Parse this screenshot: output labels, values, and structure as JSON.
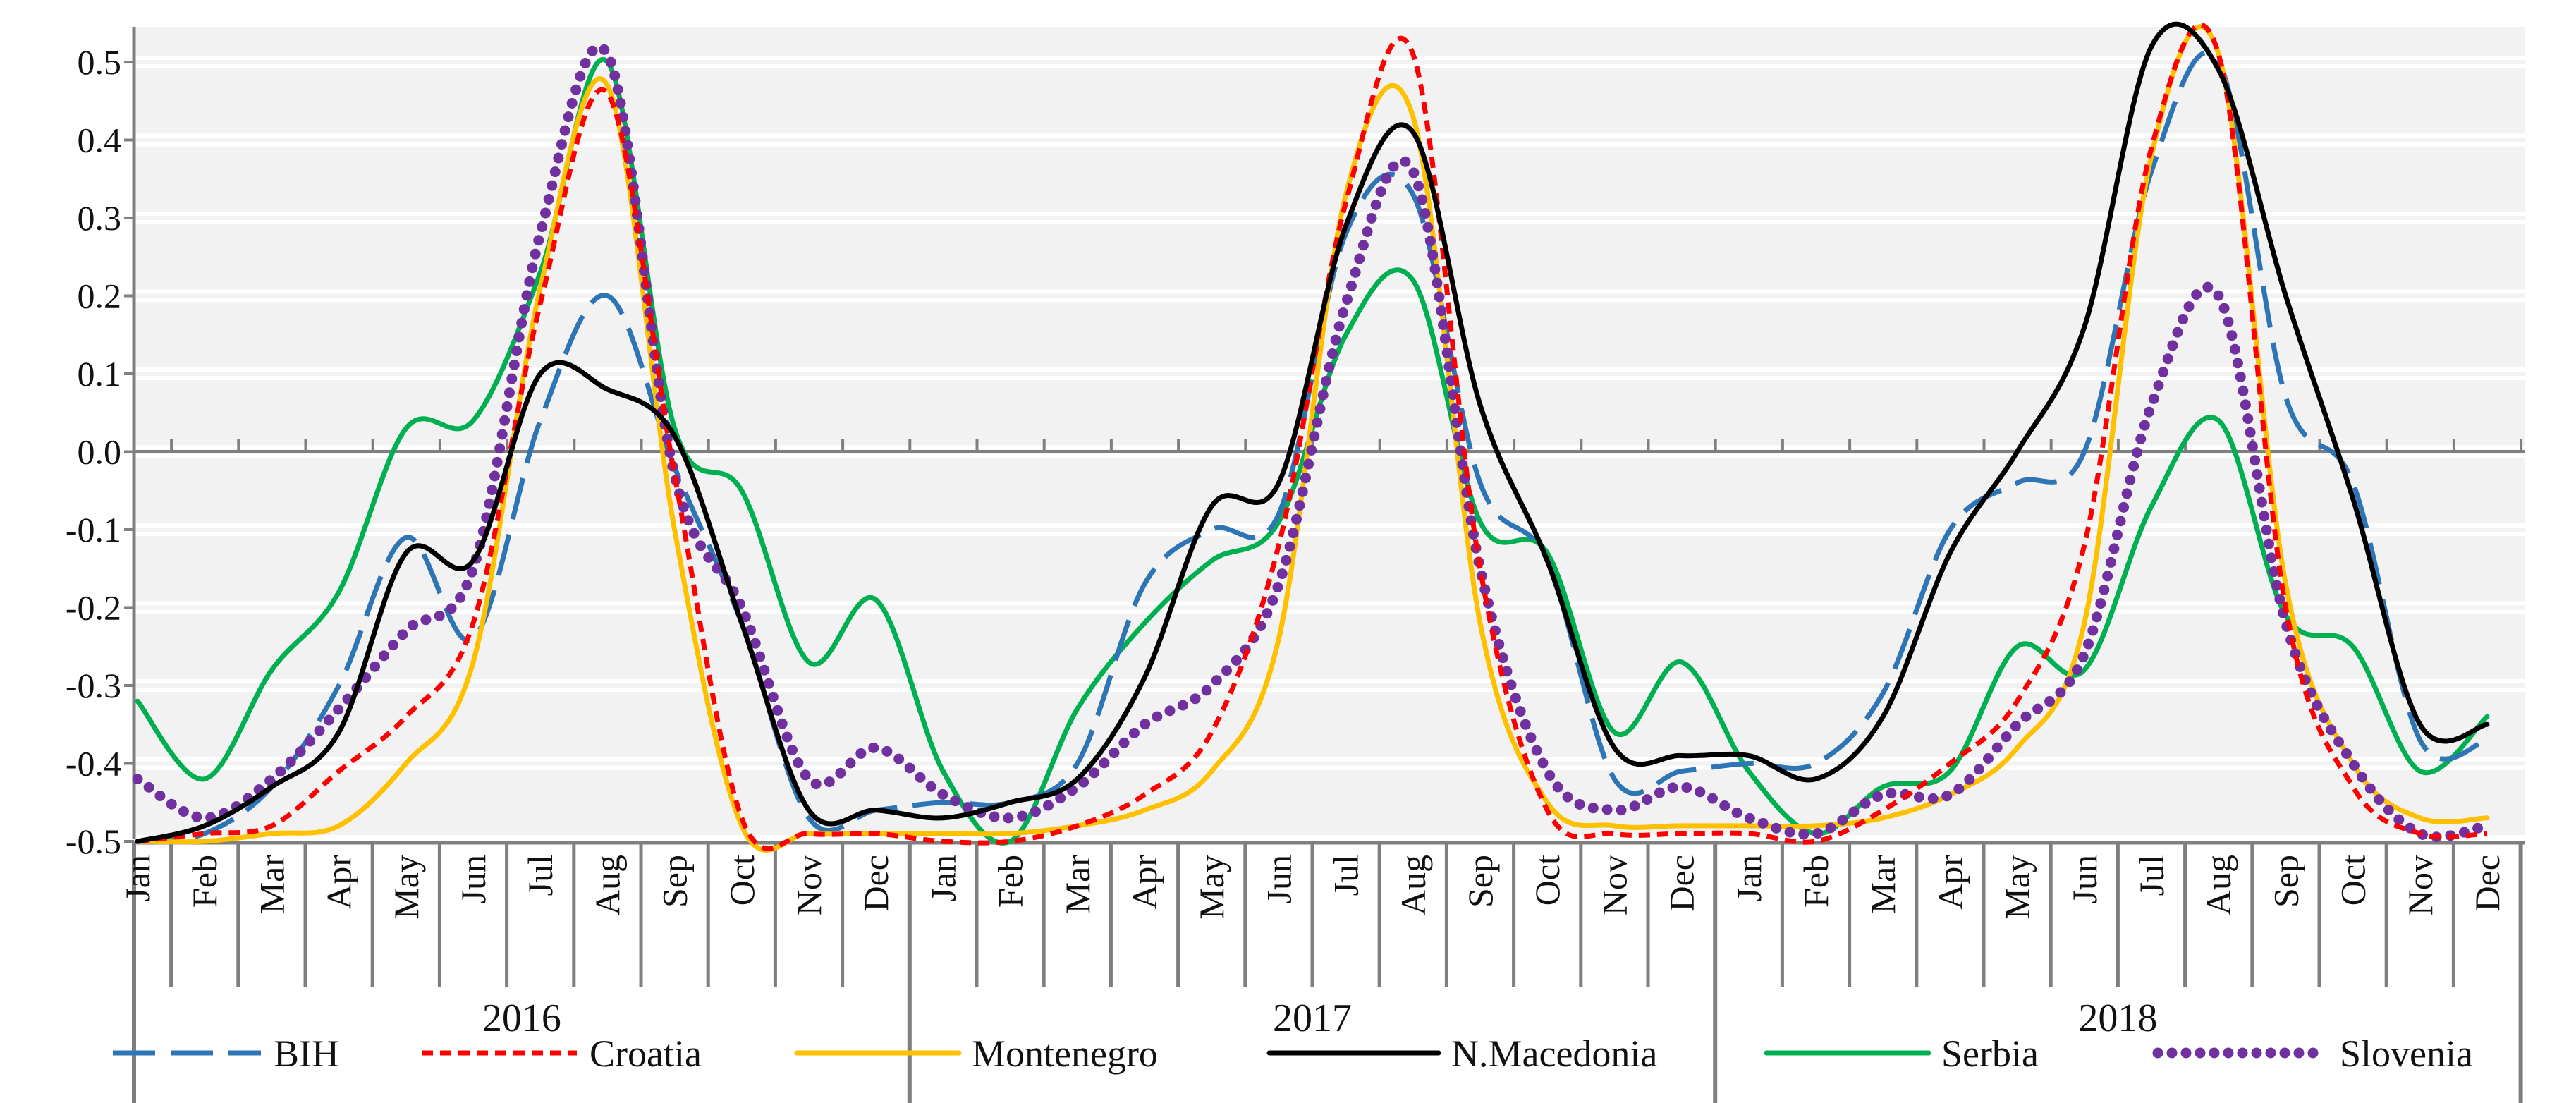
{
  "chart_data": {
    "type": "line",
    "title": "",
    "xlabel": "",
    "ylabel": "",
    "ylim": [
      -0.5,
      0.55
    ],
    "yticks": [
      "-0.5",
      "-0.4",
      "-0.3",
      "-0.2",
      "-0.1",
      "0.0",
      "0.1",
      "0.2",
      "0.3",
      "0.4",
      "0.5"
    ],
    "years": [
      "2016",
      "2017",
      "2018"
    ],
    "months": [
      "Jan",
      "Feb",
      "Mar",
      "Apr",
      "May",
      "Jun",
      "Jul",
      "Aug",
      "Sep",
      "Oct",
      "Nov",
      "Dec"
    ],
    "series": [
      {
        "name": "BIH",
        "color": "#2E75B6",
        "style": "dashed",
        "values": [
          -0.5,
          -0.49,
          -0.43,
          -0.3,
          -0.11,
          -0.24,
          0.04,
          0.2,
          -0.02,
          -0.22,
          -0.47,
          -0.46,
          -0.45,
          -0.45,
          -0.4,
          -0.17,
          -0.1,
          -0.08,
          0.28,
          0.33,
          -0.04,
          -0.14,
          -0.42,
          -0.41,
          -0.4,
          -0.4,
          -0.31,
          -0.1,
          -0.04,
          0.0,
          0.36,
          0.5,
          0.07,
          -0.04,
          -0.37,
          -0.37
        ]
      },
      {
        "name": "Croatia",
        "color": "#FF0000",
        "style": "dotted-dash",
        "values": [
          -0.5,
          -0.49,
          -0.48,
          -0.41,
          -0.34,
          -0.22,
          0.19,
          0.46,
          -0.03,
          -0.47,
          -0.49,
          -0.49,
          -0.5,
          -0.5,
          -0.48,
          -0.44,
          -0.36,
          -0.12,
          0.32,
          0.51,
          -0.15,
          -0.46,
          -0.49,
          -0.49,
          -0.49,
          -0.5,
          -0.46,
          -0.4,
          -0.32,
          -0.12,
          0.39,
          0.51,
          -0.2,
          -0.43,
          -0.49,
          -0.49
        ]
      },
      {
        "name": "Montenegro",
        "color": "#FFC000",
        "style": "solid",
        "values": [
          -0.5,
          -0.5,
          -0.49,
          -0.48,
          -0.4,
          -0.27,
          0.21,
          0.47,
          -0.1,
          -0.48,
          -0.49,
          -0.49,
          -0.49,
          -0.49,
          -0.48,
          -0.46,
          -0.41,
          -0.24,
          0.33,
          0.43,
          -0.22,
          -0.45,
          -0.48,
          -0.48,
          -0.48,
          -0.48,
          -0.47,
          -0.44,
          -0.38,
          -0.22,
          0.38,
          0.51,
          -0.17,
          -0.4,
          -0.47,
          -0.47
        ]
      },
      {
        "name": "N.Macedonia",
        "color": "#000000",
        "style": "solid",
        "values": [
          -0.5,
          -0.48,
          -0.43,
          -0.36,
          -0.13,
          -0.14,
          0.1,
          0.08,
          0.02,
          -0.22,
          -0.46,
          -0.46,
          -0.47,
          -0.45,
          -0.42,
          -0.29,
          -0.07,
          -0.04,
          0.29,
          0.41,
          0.06,
          -0.14,
          -0.38,
          -0.39,
          -0.39,
          -0.42,
          -0.34,
          -0.13,
          0.0,
          0.16,
          0.52,
          0.49,
          0.2,
          -0.06,
          -0.35,
          -0.35
        ]
      },
      {
        "name": "Serbia",
        "color": "#00B050",
        "style": "solid",
        "values": [
          -0.32,
          -0.42,
          -0.28,
          -0.18,
          0.03,
          0.04,
          0.23,
          0.5,
          0.03,
          -0.05,
          -0.27,
          -0.19,
          -0.41,
          -0.5,
          -0.33,
          -0.22,
          -0.14,
          -0.09,
          0.15,
          0.22,
          -0.09,
          -0.13,
          -0.36,
          -0.27,
          -0.41,
          -0.49,
          -0.43,
          -0.41,
          -0.25,
          -0.28,
          -0.07,
          0.04,
          -0.21,
          -0.25,
          -0.41,
          -0.34
        ]
      },
      {
        "name": "Slovenia",
        "color": "#7030A0",
        "style": "dotted",
        "values": [
          -0.42,
          -0.47,
          -0.42,
          -0.33,
          -0.23,
          -0.15,
          0.28,
          0.51,
          -0.03,
          -0.2,
          -0.42,
          -0.38,
          -0.44,
          -0.47,
          -0.43,
          -0.35,
          -0.3,
          -0.17,
          0.19,
          0.36,
          -0.15,
          -0.41,
          -0.46,
          -0.43,
          -0.47,
          -0.49,
          -0.44,
          -0.44,
          -0.35,
          -0.26,
          0.06,
          0.2,
          -0.22,
          -0.4,
          -0.49,
          -0.48
        ]
      }
    ]
  }
}
